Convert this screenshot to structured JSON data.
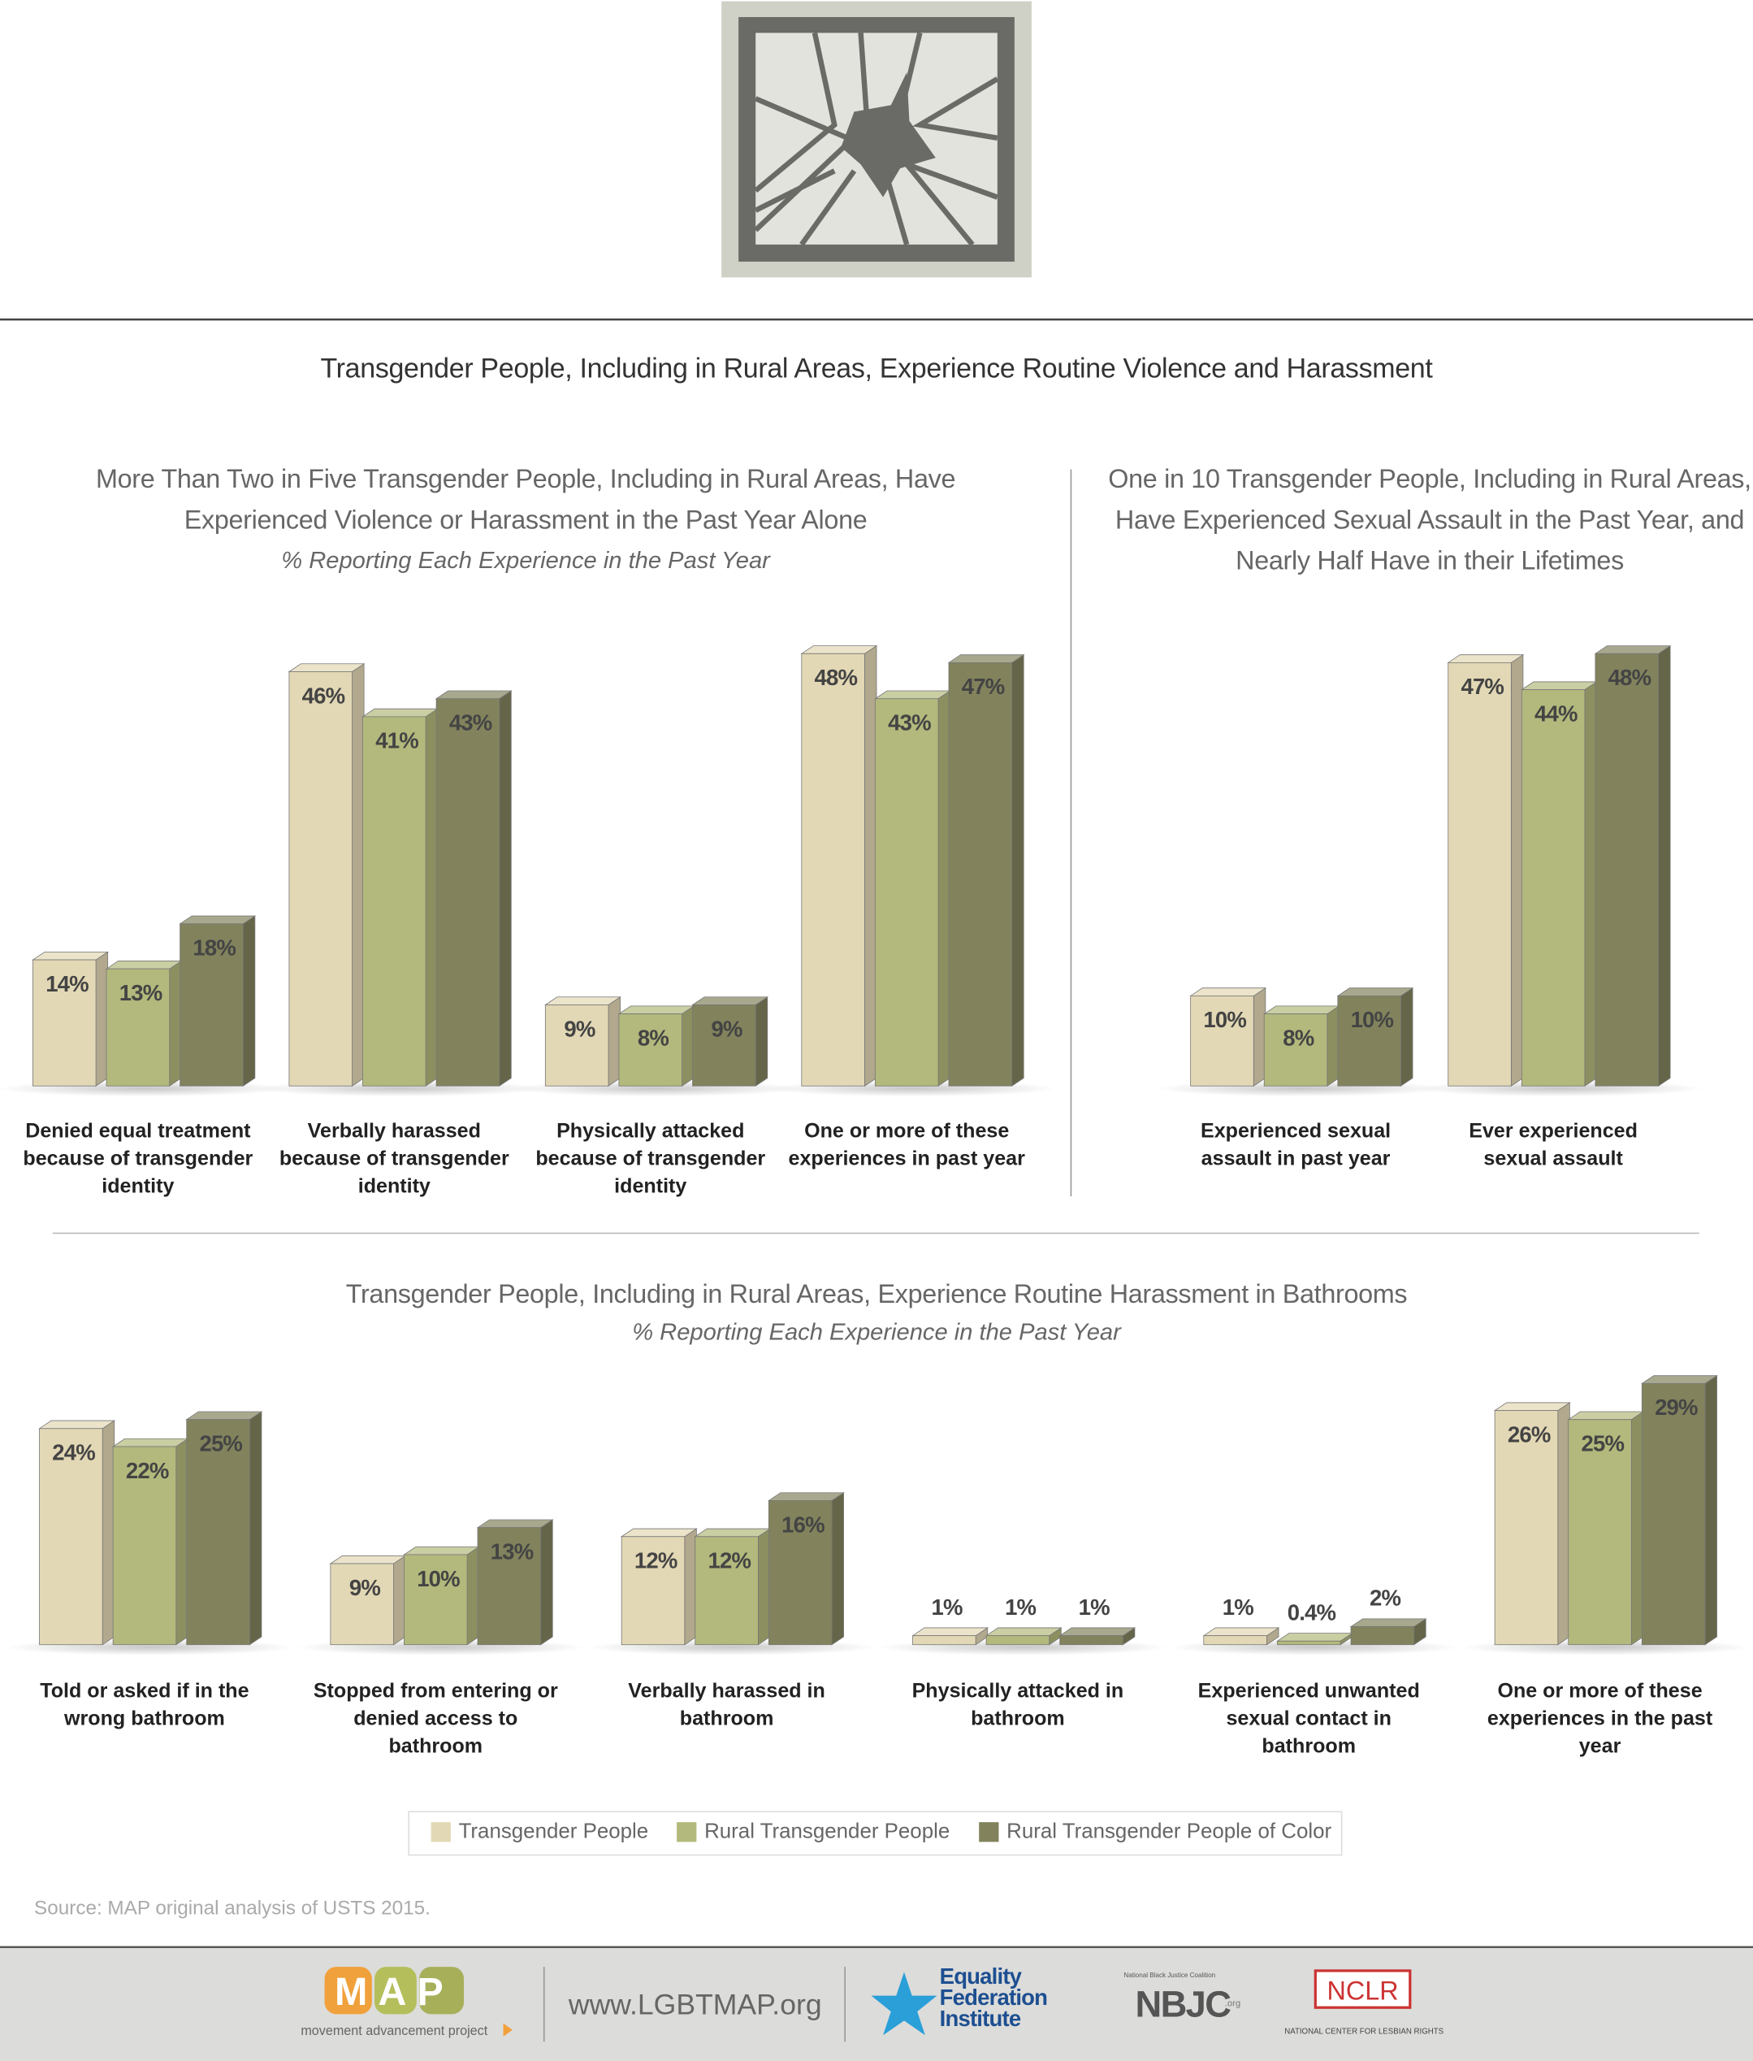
{
  "header": {
    "title": "Transgender People, Including in Rural Areas, Experience Routine Violence and Harassment"
  },
  "legend": {
    "series": [
      {
        "name": "Transgender People",
        "color": "#e3d8b5"
      },
      {
        "name": "Rural Transgender People",
        "color": "#b3b97c"
      },
      {
        "name": "Rural Transgender People of Color",
        "color": "#82835d"
      }
    ]
  },
  "chart_data": [
    {
      "type": "bar",
      "title": "More Than Two in Five Transgender People, Including in Rural Areas, Have Experienced Violence or Harassment in the Past Year Alone",
      "subtitle": "% Reporting Each Experience in the Past Year",
      "categories": [
        "Denied equal treatment because of transgender identity",
        "Verbally harassed because of transgender identity",
        "Physically attacked because of transgender identity",
        "One or more of these experiences in past year"
      ],
      "series": [
        {
          "values": [
            14,
            46,
            9,
            48
          ],
          "value_labels": [
            "14%",
            "46%",
            "9%",
            "48%"
          ]
        },
        {
          "values": [
            13,
            41,
            8,
            43
          ],
          "value_labels": [
            "13%",
            "41%",
            "8%",
            "43%"
          ]
        },
        {
          "values": [
            18,
            43,
            9,
            47
          ],
          "value_labels": [
            "18%",
            "43%",
            "9%",
            "47%"
          ]
        }
      ]
    },
    {
      "type": "bar",
      "title": "One in 10 Transgender People, Including in Rural Areas, Have Experienced Sexual Assault in the Past Year, and Nearly Half Have in their Lifetimes",
      "categories": [
        "Experienced sexual assault in past year",
        "Ever experienced sexual assault"
      ],
      "series": [
        {
          "values": [
            10,
            47
          ],
          "value_labels": [
            "10%",
            "47%"
          ]
        },
        {
          "values": [
            8,
            44
          ],
          "value_labels": [
            "8%",
            "44%"
          ]
        },
        {
          "values": [
            10,
            48
          ],
          "value_labels": [
            "10%",
            "48%"
          ]
        }
      ]
    },
    {
      "type": "bar",
      "title": "Transgender People, Including in Rural Areas, Experience Routine Harassment in Bathrooms",
      "subtitle": "% Reporting Each Experience in the Past Year",
      "categories": [
        "Told or asked if in the wrong bathroom",
        "Stopped from entering or denied access to bathroom",
        "Verbally harassed in bathroom",
        "Physically attacked in bathroom",
        "Experienced unwanted sexual contact in bathroom",
        "One or more of these experiences in the past year"
      ],
      "series": [
        {
          "values": [
            24,
            9,
            12,
            1,
            1,
            26
          ],
          "value_labels": [
            "24%",
            "9%",
            "12%",
            "1%",
            "1%",
            "26%"
          ]
        },
        {
          "values": [
            22,
            10,
            12,
            1,
            0.4,
            25
          ],
          "value_labels": [
            "22%",
            "10%",
            "12%",
            "1%",
            "0.4%",
            "25%"
          ]
        },
        {
          "values": [
            25,
            13,
            16,
            1,
            2,
            29
          ],
          "value_labels": [
            "25%",
            "13%",
            "16%",
            "1%",
            "2%",
            "29%"
          ]
        }
      ]
    }
  ],
  "source": "Source: MAP original analysis of USTS 2015.",
  "footer": {
    "map_logo": "MAP",
    "map_name": "movement advancement project",
    "url": "www.LGBTMAP.org",
    "equality": "Equality Federation Institute",
    "nbjc": "NBJC",
    "nbjc_name": "National Black Justice Coalition",
    "nbjc_org": ".org",
    "nclr": "NCLR",
    "nclr_name": "NATIONAL CENTER FOR LESBIAN RIGHTS"
  }
}
